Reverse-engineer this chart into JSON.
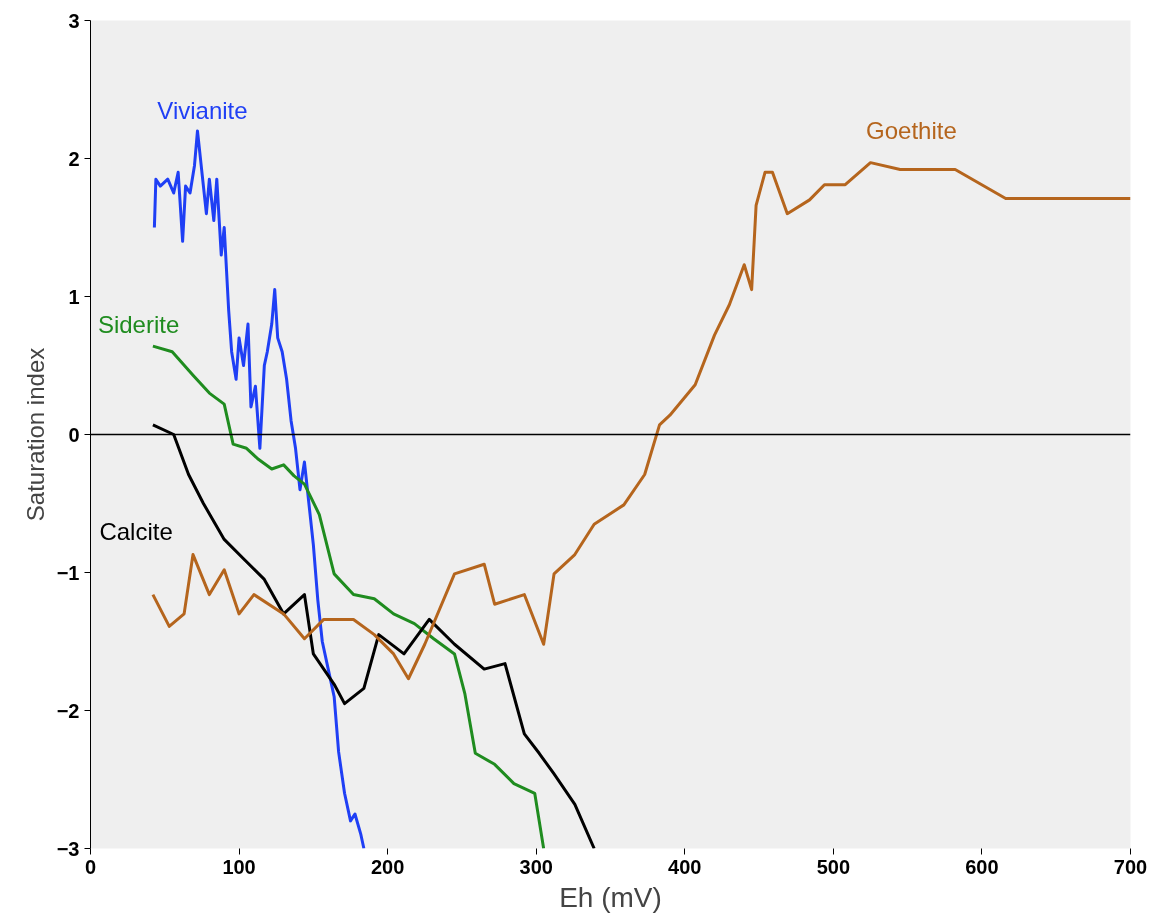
{
  "chart_data": {
    "type": "line",
    "xlabel": "Eh (mV)",
    "ylabel": "Saturation index",
    "xlim": [
      0,
      700
    ],
    "xticks": [
      0,
      100,
      200,
      300,
      400,
      500,
      600,
      700
    ],
    "ylim": [
      -3,
      3
    ],
    "yticks": [
      -3,
      -2,
      -1,
      0,
      1,
      2,
      3
    ],
    "grid": false,
    "ref_lines": [
      {
        "axis": "y",
        "value": 0,
        "color": "#000000"
      }
    ],
    "marker": "none",
    "line_style": "solid",
    "series": [
      {
        "name": "Vivianite",
        "color": "#1f3ff5",
        "x": [
          43,
          44,
          47,
          52,
          56,
          59,
          62,
          64,
          67,
          70,
          72,
          73,
          75,
          78,
          80,
          83,
          85,
          88,
          90,
          93,
          95,
          98,
          100,
          103,
          106,
          108,
          111,
          114,
          117,
          119,
          122,
          124,
          126,
          129,
          132,
          135,
          138,
          141,
          144,
          147,
          150,
          153,
          156,
          160,
          164,
          167,
          171,
          175,
          178,
          182,
          184
        ],
        "values": [
          1.5,
          1.85,
          1.8,
          1.85,
          1.75,
          1.9,
          1.4,
          1.8,
          1.75,
          1.95,
          2.2,
          2.1,
          1.9,
          1.6,
          1.85,
          1.55,
          1.85,
          1.3,
          1.5,
          0.9,
          0.6,
          0.4,
          0.7,
          0.5,
          0.8,
          0.2,
          0.35,
          -0.1,
          0.5,
          0.6,
          0.8,
          1.05,
          0.7,
          0.6,
          0.4,
          0.1,
          -0.1,
          -0.4,
          -0.2,
          -0.5,
          -0.8,
          -1.2,
          -1.5,
          -1.7,
          -1.9,
          -2.3,
          -2.6,
          -2.8,
          -2.75,
          -2.9,
          -3.0
        ]
      },
      {
        "name": "Siderite",
        "color": "#1f8c1f",
        "x": [
          42,
          55,
          69,
          80,
          90,
          96,
          105,
          113,
          122,
          130,
          137,
          144,
          154,
          164,
          177,
          191,
          204,
          218,
          231,
          245,
          252,
          259,
          272,
          285,
          299,
          305
        ],
        "values": [
          0.64,
          0.6,
          0.43,
          0.3,
          0.22,
          -0.07,
          -0.1,
          -0.18,
          -0.25,
          -0.22,
          -0.3,
          -0.36,
          -0.58,
          -1.01,
          -1.16,
          -1.19,
          -1.3,
          -1.37,
          -1.48,
          -1.59,
          -1.88,
          -2.31,
          -2.39,
          -2.53,
          -2.6,
          -3.0
        ]
      },
      {
        "name": "Calcite",
        "color": "#000000",
        "x": [
          42,
          56,
          66,
          76,
          90,
          103,
          117,
          130,
          144,
          150,
          164,
          171,
          184,
          194,
          211,
          228,
          245,
          265,
          279,
          292,
          302,
          312,
          326,
          339
        ],
        "values": [
          0.07,
          0.0,
          -0.29,
          -0.5,
          -0.76,
          -0.9,
          -1.05,
          -1.3,
          -1.16,
          -1.59,
          -1.81,
          -1.95,
          -1.84,
          -1.45,
          -1.59,
          -1.34,
          -1.52,
          -1.7,
          -1.66,
          -2.17,
          -2.31,
          -2.46,
          -2.68,
          -3.0
        ]
      },
      {
        "name": "Goethite",
        "color": "#b5651d",
        "x": [
          42,
          53,
          63,
          69,
          80,
          90,
          100,
          110,
          130,
          144,
          157,
          177,
          191,
          204,
          214,
          225,
          245,
          265,
          272,
          292,
          305,
          312,
          326,
          339,
          359,
          373,
          383,
          390,
          407,
          420,
          430,
          440,
          445,
          448,
          454,
          459,
          469,
          484,
          494,
          508,
          525,
          545,
          582,
          616,
          700
        ],
        "values": [
          -1.16,
          -1.39,
          -1.3,
          -0.87,
          -1.16,
          -0.98,
          -1.3,
          -1.16,
          -1.3,
          -1.48,
          -1.34,
          -1.34,
          -1.45,
          -1.59,
          -1.77,
          -1.52,
          -1.01,
          -0.94,
          -1.23,
          -1.16,
          -1.52,
          -1.01,
          -0.87,
          -0.65,
          -0.51,
          -0.29,
          0.07,
          0.14,
          0.36,
          0.72,
          0.94,
          1.23,
          1.05,
          1.66,
          1.9,
          1.9,
          1.6,
          1.7,
          1.81,
          1.81,
          1.97,
          1.92,
          1.92,
          1.71,
          1.71
        ]
      }
    ]
  }
}
